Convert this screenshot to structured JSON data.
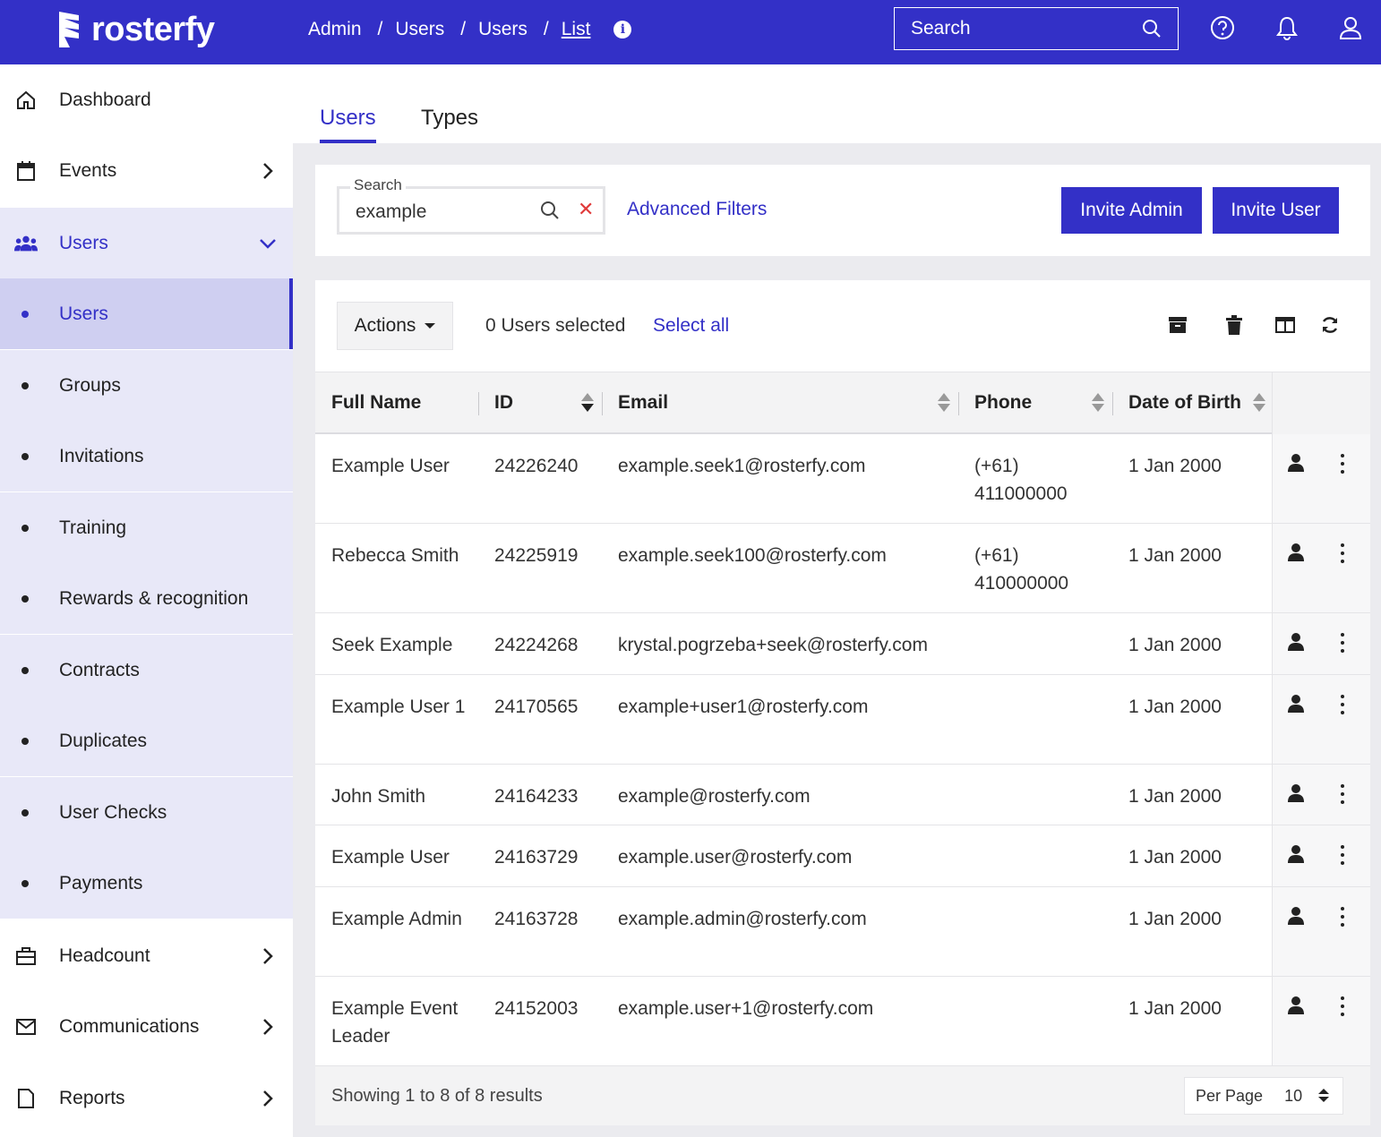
{
  "brand": {
    "name": "rosterfy",
    "primary_color": "#3330c7",
    "danger_color": "#e03a3a"
  },
  "header": {
    "breadcrumbs": [
      "Admin",
      "Users",
      "Users",
      "List"
    ],
    "search_placeholder": "Search",
    "icons": [
      "info-icon",
      "search-icon",
      "help-icon",
      "bell-icon",
      "user-icon"
    ]
  },
  "sidebar": {
    "items": [
      {
        "label": "Dashboard",
        "icon": "home-icon"
      },
      {
        "label": "Events",
        "icon": "calendar-icon",
        "chevron": "right"
      },
      {
        "label": "Users",
        "icon": "users-icon",
        "chevron": "down",
        "expanded": true
      },
      {
        "label": "Headcount",
        "icon": "briefcase-icon",
        "chevron": "right"
      },
      {
        "label": "Communications",
        "icon": "envelope-icon",
        "chevron": "right"
      },
      {
        "label": "Reports",
        "icon": "file-icon",
        "chevron": "right"
      }
    ],
    "sub_items": [
      "Users",
      "Groups",
      "Invitations",
      "Training",
      "Rewards & recognition",
      "Contracts",
      "Duplicates",
      "User Checks",
      "Payments"
    ],
    "active_sub": "Users"
  },
  "tabs": [
    {
      "label": "Users",
      "active": true
    },
    {
      "label": "Types",
      "active": false
    }
  ],
  "filters": {
    "search_label": "Search",
    "search_value": "example",
    "advanced_filters": "Advanced Filters",
    "invite_admin": "Invite Admin",
    "invite_user": "Invite User"
  },
  "toolbar": {
    "actions_label": "Actions",
    "selected_text": "0 Users selected",
    "select_all": "Select all",
    "icons": [
      "archive-icon",
      "trash-icon",
      "columns-icon",
      "refresh-icon"
    ]
  },
  "table": {
    "columns": [
      "Full Name",
      "ID",
      "Email",
      "Phone",
      "Date of Birth"
    ],
    "sort": {
      "column": "ID",
      "direction": "desc"
    },
    "rows": [
      {
        "name": "Example User",
        "id": "24226240",
        "email": "example.seek1@rosterfy.com",
        "phone": "(+61) 411000000",
        "dob": "1 Jan 2000"
      },
      {
        "name": "Rebecca Smith",
        "id": "24225919",
        "email": "example.seek100@rosterfy.com",
        "phone": "(+61) 410000000",
        "dob": "1 Jan 2000"
      },
      {
        "name": "Seek Example",
        "id": "24224268",
        "email": "krystal.pogrzeba+seek@rosterfy.com",
        "phone": "",
        "dob": "1 Jan 2000"
      },
      {
        "name": "Example User 1",
        "id": "24170565",
        "email": "example+user1@rosterfy.com",
        "phone": "",
        "dob": "1 Jan 2000"
      },
      {
        "name": "John Smith",
        "id": "24164233",
        "email": "example@rosterfy.com",
        "phone": "",
        "dob": "1 Jan 2000"
      },
      {
        "name": "Example User",
        "id": "24163729",
        "email": "example.user@rosterfy.com",
        "phone": "",
        "dob": "1 Jan 2000"
      },
      {
        "name": "Example Admin",
        "id": "24163728",
        "email": "example.admin@rosterfy.com",
        "phone": "",
        "dob": "1 Jan 2000"
      },
      {
        "name": "Example Event Leader",
        "id": "24152003",
        "email": "example.user+1@rosterfy.com",
        "phone": "",
        "dob": "1 Jan 2000"
      }
    ]
  },
  "footer": {
    "showing": "Showing 1 to 8 of 8 results",
    "per_page_label": "Per Page",
    "per_page_value": "10"
  }
}
